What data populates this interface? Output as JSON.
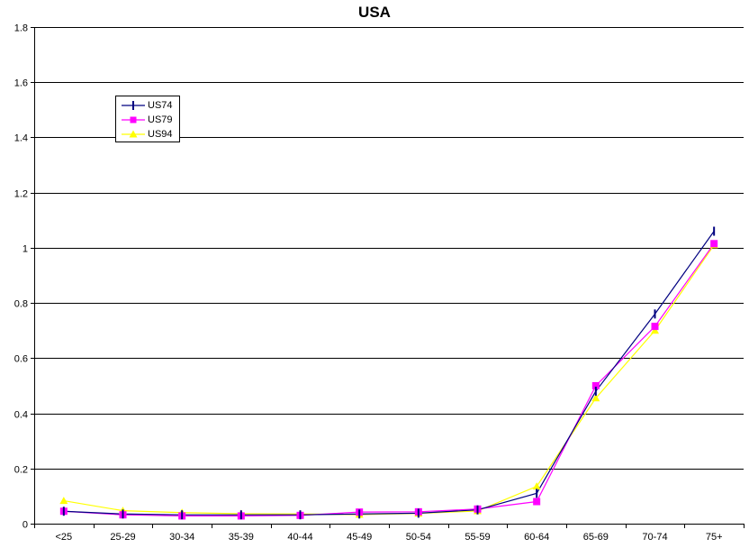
{
  "chart_data": {
    "type": "line",
    "title": "USA",
    "xlabel": "",
    "ylabel": "",
    "categories": [
      "<25",
      "25-29",
      "30-34",
      "35-39",
      "40-44",
      "45-49",
      "50-54",
      "55-59",
      "60-64",
      "65-69",
      "70-74",
      "75+"
    ],
    "ylim": [
      0,
      1.8
    ],
    "yticks": [
      "0",
      "0.2",
      "0.4",
      "0.6",
      "0.8",
      "1",
      "1.2",
      "1.4",
      "1.6",
      "1.8"
    ],
    "grid": "horizontal",
    "legend_position": "top-left",
    "series": [
      {
        "name": "US74",
        "color": "#000080",
        "marker": "dash",
        "values": [
          0.045,
          0.035,
          0.032,
          0.032,
          0.032,
          0.035,
          0.038,
          0.05,
          0.11,
          0.48,
          0.76,
          1.06
        ]
      },
      {
        "name": "US79",
        "color": "#ff00ff",
        "marker": "square",
        "values": [
          0.045,
          0.032,
          0.028,
          0.028,
          0.03,
          0.042,
          0.043,
          0.053,
          0.08,
          0.5,
          0.715,
          1.015
        ]
      },
      {
        "name": "US94",
        "color": "#ffff00",
        "marker": "triangle",
        "values": [
          0.083,
          0.047,
          0.04,
          0.036,
          0.035,
          0.033,
          0.037,
          0.046,
          0.135,
          0.455,
          0.7,
          1.01
        ]
      }
    ]
  }
}
